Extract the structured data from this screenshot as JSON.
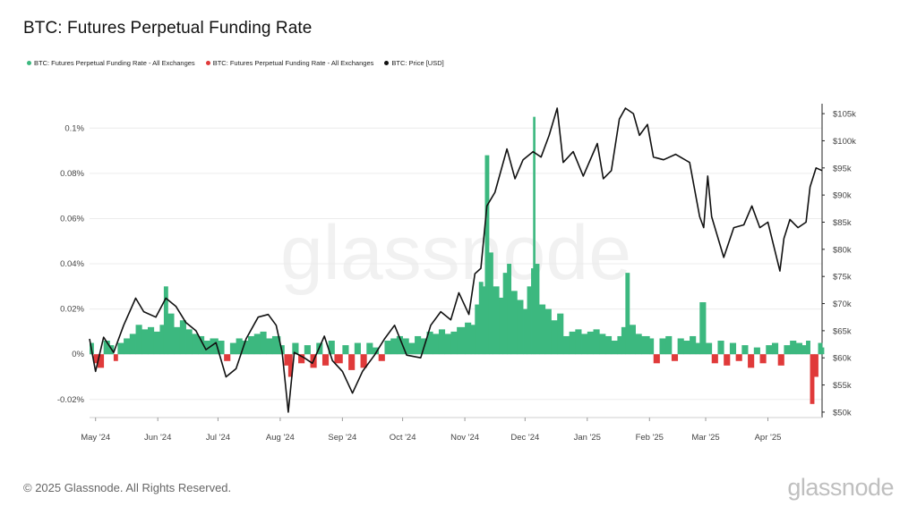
{
  "title": "BTC: Futures Perpetual Funding Rate",
  "legend": [
    {
      "label": "BTC: Futures Perpetual Funding Rate - All Exchanges",
      "color": "#3cb87f"
    },
    {
      "label": "BTC: Futures Perpetual Funding Rate - All Exchanges",
      "color": "#e03a3a"
    },
    {
      "label": "BTC: Price [USD]",
      "color": "#111111"
    }
  ],
  "watermark": "glassnode",
  "footer": "© 2025 Glassnode. All Rights Reserved.",
  "brand": "glassnode",
  "colors": {
    "positive": "#3cb87f",
    "negative": "#e03a3a",
    "price": "#111111",
    "grid": "#ececec"
  },
  "chart_data": {
    "type": "bar+line",
    "title": "BTC: Futures Perpetual Funding Rate",
    "x_range": [
      "2024-04-28",
      "2025-04-28"
    ],
    "x_ticks": [
      {
        "date": "2024-05-01",
        "label": "May '24"
      },
      {
        "date": "2024-06-01",
        "label": "Jun '24"
      },
      {
        "date": "2024-07-01",
        "label": "Jul '24"
      },
      {
        "date": "2024-08-01",
        "label": "Aug '24"
      },
      {
        "date": "2024-09-01",
        "label": "Sep '24"
      },
      {
        "date": "2024-10-01",
        "label": "Oct '24"
      },
      {
        "date": "2024-11-01",
        "label": "Nov '24"
      },
      {
        "date": "2024-12-01",
        "label": "Dec '24"
      },
      {
        "date": "2025-01-01",
        "label": "Jan '25"
      },
      {
        "date": "2025-02-01",
        "label": "Feb '25"
      },
      {
        "date": "2025-03-01",
        "label": "Mar '25"
      },
      {
        "date": "2025-04-01",
        "label": "Apr '25"
      }
    ],
    "left_axis": {
      "ylim": [
        -0.028,
        0.11
      ],
      "ticks": [
        {
          "value": 0.1,
          "label": "0.1%"
        },
        {
          "value": 0.08,
          "label": "0.08%"
        },
        {
          "value": 0.06,
          "label": "0.06%"
        },
        {
          "value": 0.04,
          "label": "0.04%"
        },
        {
          "value": 0.02,
          "label": "0.02%"
        },
        {
          "value": 0,
          "label": "0%"
        },
        {
          "value": -0.02,
          "label": "-0.02%"
        }
      ]
    },
    "right_axis": {
      "ylim": [
        49000,
        106500
      ],
      "scale": "linear",
      "ticks": [
        {
          "value": 105000,
          "label": "$105k"
        },
        {
          "value": 100000,
          "label": "$100k"
        },
        {
          "value": 95000,
          "label": "$95k"
        },
        {
          "value": 90000,
          "label": "$90k"
        },
        {
          "value": 85000,
          "label": "$85k"
        },
        {
          "value": 80000,
          "label": "$80k"
        },
        {
          "value": 75000,
          "label": "$75k"
        },
        {
          "value": 70000,
          "label": "$70k"
        },
        {
          "value": 65000,
          "label": "$65k"
        },
        {
          "value": 60000,
          "label": "$60k"
        },
        {
          "value": 55000,
          "label": "$55k"
        },
        {
          "value": 50000,
          "label": "$50k"
        }
      ]
    },
    "series": [
      {
        "name": "BTC: Futures Perpetual Funding Rate - All Exchanges",
        "type": "bar",
        "axis": "left",
        "unit": "%",
        "points": [
          [
            "2024-04-28",
            0.005
          ],
          [
            "2024-04-30",
            -0.004
          ],
          [
            "2024-05-02",
            -0.006
          ],
          [
            "2024-05-05",
            0.006
          ],
          [
            "2024-05-08",
            0.004
          ],
          [
            "2024-05-10",
            -0.003
          ],
          [
            "2024-05-12",
            0.005
          ],
          [
            "2024-05-15",
            0.007
          ],
          [
            "2024-05-18",
            0.009
          ],
          [
            "2024-05-21",
            0.013
          ],
          [
            "2024-05-24",
            0.011
          ],
          [
            "2024-05-27",
            0.012
          ],
          [
            "2024-05-30",
            0.01
          ],
          [
            "2024-06-02",
            0.013
          ],
          [
            "2024-06-04",
            0.03
          ],
          [
            "2024-06-06",
            0.018
          ],
          [
            "2024-06-09",
            0.012
          ],
          [
            "2024-06-12",
            0.015
          ],
          [
            "2024-06-15",
            0.011
          ],
          [
            "2024-06-18",
            0.009
          ],
          [
            "2024-06-21",
            0.008
          ],
          [
            "2024-06-24",
            0.006
          ],
          [
            "2024-06-27",
            0.007
          ],
          [
            "2024-07-01",
            0.006
          ],
          [
            "2024-07-04",
            -0.003
          ],
          [
            "2024-07-07",
            0.005
          ],
          [
            "2024-07-10",
            0.007
          ],
          [
            "2024-07-13",
            0.006
          ],
          [
            "2024-07-16",
            0.008
          ],
          [
            "2024-07-19",
            0.009
          ],
          [
            "2024-07-22",
            0.01
          ],
          [
            "2024-07-25",
            0.007
          ],
          [
            "2024-07-28",
            0.008
          ],
          [
            "2024-08-01",
            0.004
          ],
          [
            "2024-08-03",
            -0.005
          ],
          [
            "2024-08-05",
            -0.01
          ],
          [
            "2024-08-07",
            0.005
          ],
          [
            "2024-08-10",
            -0.004
          ],
          [
            "2024-08-13",
            0.004
          ],
          [
            "2024-08-16",
            -0.006
          ],
          [
            "2024-08-19",
            0.005
          ],
          [
            "2024-08-22",
            -0.005
          ],
          [
            "2024-08-25",
            0.006
          ],
          [
            "2024-08-28",
            -0.004
          ],
          [
            "2024-09-01",
            0.004
          ],
          [
            "2024-09-04",
            -0.007
          ],
          [
            "2024-09-07",
            0.005
          ],
          [
            "2024-09-10",
            -0.006
          ],
          [
            "2024-09-13",
            0.005
          ],
          [
            "2024-09-16",
            0.003
          ],
          [
            "2024-09-19",
            -0.003
          ],
          [
            "2024-09-22",
            0.006
          ],
          [
            "2024-09-25",
            0.007
          ],
          [
            "2024-09-28",
            0.008
          ],
          [
            "2024-10-01",
            0.007
          ],
          [
            "2024-10-04",
            0.005
          ],
          [
            "2024-10-07",
            0.008
          ],
          [
            "2024-10-10",
            0.007
          ],
          [
            "2024-10-13",
            0.01
          ],
          [
            "2024-10-16",
            0.009
          ],
          [
            "2024-10-19",
            0.011
          ],
          [
            "2024-10-22",
            0.009
          ],
          [
            "2024-10-25",
            0.01
          ],
          [
            "2024-10-28",
            0.012
          ],
          [
            "2024-11-01",
            0.014
          ],
          [
            "2024-11-04",
            0.013
          ],
          [
            "2024-11-06",
            0.022
          ],
          [
            "2024-11-08",
            0.032
          ],
          [
            "2024-11-10",
            0.03
          ],
          [
            "2024-11-11",
            0.088
          ],
          [
            "2024-11-13",
            0.045
          ],
          [
            "2024-11-15",
            0.03
          ],
          [
            "2024-11-18",
            0.025
          ],
          [
            "2024-11-20",
            0.036
          ],
          [
            "2024-11-22",
            0.04
          ],
          [
            "2024-11-24",
            0.028
          ],
          [
            "2024-11-27",
            0.024
          ],
          [
            "2024-11-30",
            0.02
          ],
          [
            "2024-12-02",
            0.03
          ],
          [
            "2024-12-04",
            0.038
          ],
          [
            "2024-12-05",
            0.105
          ],
          [
            "2024-12-06",
            0.04
          ],
          [
            "2024-12-08",
            0.022
          ],
          [
            "2024-12-11",
            0.02
          ],
          [
            "2024-12-14",
            0.015
          ],
          [
            "2024-12-17",
            0.018
          ],
          [
            "2024-12-20",
            0.008
          ],
          [
            "2024-12-23",
            0.01
          ],
          [
            "2024-12-26",
            0.011
          ],
          [
            "2024-12-29",
            0.009
          ],
          [
            "2025-01-01",
            0.01
          ],
          [
            "2025-01-04",
            0.011
          ],
          [
            "2025-01-07",
            0.009
          ],
          [
            "2025-01-10",
            0.008
          ],
          [
            "2025-01-13",
            0.006
          ],
          [
            "2025-01-16",
            0.008
          ],
          [
            "2025-01-18",
            0.012
          ],
          [
            "2025-01-20",
            0.036
          ],
          [
            "2025-01-22",
            0.013
          ],
          [
            "2025-01-25",
            0.009
          ],
          [
            "2025-01-28",
            0.008
          ],
          [
            "2025-02-01",
            0.007
          ],
          [
            "2025-02-03",
            -0.004
          ],
          [
            "2025-02-06",
            0.007
          ],
          [
            "2025-02-09",
            0.008
          ],
          [
            "2025-02-12",
            -0.003
          ],
          [
            "2025-02-15",
            0.007
          ],
          [
            "2025-02-18",
            0.006
          ],
          [
            "2025-02-21",
            0.008
          ],
          [
            "2025-02-24",
            0.005
          ],
          [
            "2025-02-26",
            0.023
          ],
          [
            "2025-03-01",
            0.005
          ],
          [
            "2025-03-04",
            -0.004
          ],
          [
            "2025-03-07",
            0.006
          ],
          [
            "2025-03-10",
            -0.005
          ],
          [
            "2025-03-13",
            0.005
          ],
          [
            "2025-03-16",
            -0.003
          ],
          [
            "2025-03-19",
            0.004
          ],
          [
            "2025-03-22",
            -0.006
          ],
          [
            "2025-03-25",
            0.003
          ],
          [
            "2025-03-28",
            -0.004
          ],
          [
            "2025-03-31",
            0.004
          ],
          [
            "2025-04-03",
            0.005
          ],
          [
            "2025-04-06",
            -0.005
          ],
          [
            "2025-04-09",
            0.004
          ],
          [
            "2025-04-12",
            0.006
          ],
          [
            "2025-04-15",
            0.005
          ],
          [
            "2025-04-18",
            0.004
          ],
          [
            "2025-04-20",
            0.006
          ],
          [
            "2025-04-22",
            -0.022
          ],
          [
            "2025-04-24",
            -0.01
          ],
          [
            "2025-04-26",
            0.005
          ],
          [
            "2025-04-28",
            0.003
          ]
        ]
      },
      {
        "name": "BTC: Price [USD]",
        "type": "line",
        "axis": "right",
        "points": [
          [
            "2024-04-28",
            63500
          ],
          [
            "2024-05-01",
            57500
          ],
          [
            "2024-05-05",
            63800
          ],
          [
            "2024-05-10",
            61000
          ],
          [
            "2024-05-15",
            66000
          ],
          [
            "2024-05-21",
            71000
          ],
          [
            "2024-05-25",
            68500
          ],
          [
            "2024-05-31",
            67500
          ],
          [
            "2024-06-05",
            71000
          ],
          [
            "2024-06-10",
            69500
          ],
          [
            "2024-06-15",
            66500
          ],
          [
            "2024-06-20",
            65000
          ],
          [
            "2024-06-25",
            61500
          ],
          [
            "2024-06-30",
            62800
          ],
          [
            "2024-07-05",
            56500
          ],
          [
            "2024-07-10",
            58000
          ],
          [
            "2024-07-15",
            63500
          ],
          [
            "2024-07-21",
            67500
          ],
          [
            "2024-07-26",
            68000
          ],
          [
            "2024-07-30",
            66000
          ],
          [
            "2024-08-02",
            61000
          ],
          [
            "2024-08-05",
            50000
          ],
          [
            "2024-08-08",
            61000
          ],
          [
            "2024-08-13",
            60000
          ],
          [
            "2024-08-17",
            59000
          ],
          [
            "2024-08-23",
            64000
          ],
          [
            "2024-08-27",
            59500
          ],
          [
            "2024-09-01",
            57500
          ],
          [
            "2024-09-06",
            53500
          ],
          [
            "2024-09-11",
            57500
          ],
          [
            "2024-09-17",
            60500
          ],
          [
            "2024-09-22",
            63500
          ],
          [
            "2024-09-27",
            66000
          ],
          [
            "2024-10-03",
            60500
          ],
          [
            "2024-10-10",
            60000
          ],
          [
            "2024-10-15",
            66000
          ],
          [
            "2024-10-20",
            68500
          ],
          [
            "2024-10-25",
            67000
          ],
          [
            "2024-10-29",
            72000
          ],
          [
            "2024-11-03",
            68000
          ],
          [
            "2024-11-06",
            75500
          ],
          [
            "2024-11-09",
            76500
          ],
          [
            "2024-11-12",
            88000
          ],
          [
            "2024-11-16",
            90500
          ],
          [
            "2024-11-22",
            98500
          ],
          [
            "2024-11-26",
            93000
          ],
          [
            "2024-11-30",
            96500
          ],
          [
            "2024-12-05",
            98000
          ],
          [
            "2024-12-09",
            97000
          ],
          [
            "2024-12-13",
            101000
          ],
          [
            "2024-12-17",
            106000
          ],
          [
            "2024-12-20",
            96000
          ],
          [
            "2024-12-25",
            98000
          ],
          [
            "2024-12-30",
            93500
          ],
          [
            "2025-01-06",
            99500
          ],
          [
            "2025-01-09",
            93000
          ],
          [
            "2025-01-13",
            94500
          ],
          [
            "2025-01-17",
            104000
          ],
          [
            "2025-01-20",
            106000
          ],
          [
            "2025-01-24",
            105000
          ],
          [
            "2025-01-27",
            101000
          ],
          [
            "2025-01-31",
            103000
          ],
          [
            "2025-02-03",
            97000
          ],
          [
            "2025-02-08",
            96500
          ],
          [
            "2025-02-14",
            97500
          ],
          [
            "2025-02-21",
            96000
          ],
          [
            "2025-02-26",
            86000
          ],
          [
            "2025-02-28",
            84000
          ],
          [
            "2025-03-02",
            93500
          ],
          [
            "2025-03-04",
            86000
          ],
          [
            "2025-03-10",
            78500
          ],
          [
            "2025-03-15",
            84000
          ],
          [
            "2025-03-20",
            84500
          ],
          [
            "2025-03-24",
            88000
          ],
          [
            "2025-03-28",
            84000
          ],
          [
            "2025-04-01",
            85000
          ],
          [
            "2025-04-07",
            76000
          ],
          [
            "2025-04-09",
            82000
          ],
          [
            "2025-04-12",
            85500
          ],
          [
            "2025-04-16",
            84000
          ],
          [
            "2025-04-20",
            85000
          ],
          [
            "2025-04-22",
            91500
          ],
          [
            "2025-04-25",
            95000
          ],
          [
            "2025-04-28",
            94500
          ]
        ]
      }
    ]
  }
}
